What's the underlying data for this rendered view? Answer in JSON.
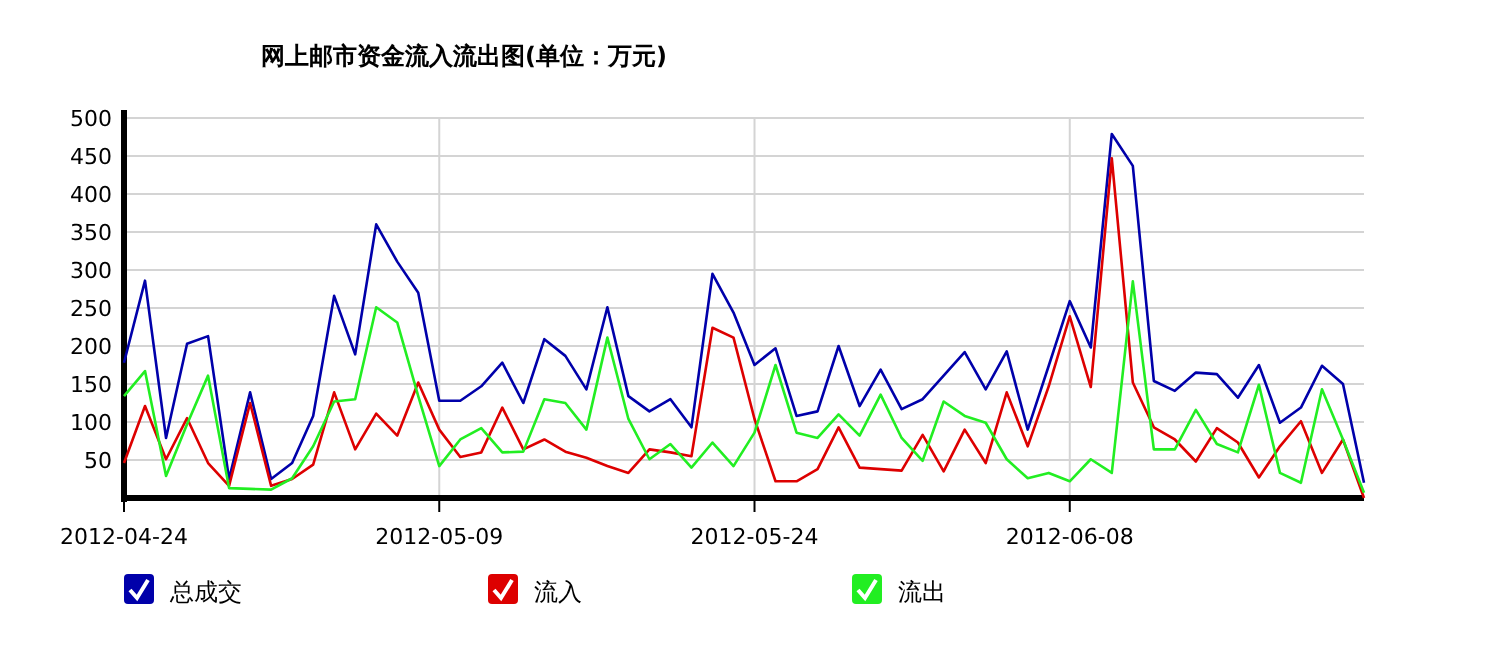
{
  "chart_data": {
    "type": "line",
    "title": "网上邮市资金流入流出图(单位：万元)",
    "x": [
      "2012-04-24",
      "2012-04-25",
      "2012-04-26",
      "2012-04-27",
      "2012-04-28",
      "2012-04-29",
      "2012-04-30",
      "2012-05-01",
      "2012-05-02",
      "2012-05-03",
      "2012-05-04",
      "2012-05-05",
      "2012-05-06",
      "2012-05-07",
      "2012-05-08",
      "2012-05-09",
      "2012-05-10",
      "2012-05-11",
      "2012-05-12",
      "2012-05-13",
      "2012-05-14",
      "2012-05-15",
      "2012-05-16",
      "2012-05-17",
      "2012-05-18",
      "2012-05-19",
      "2012-05-20",
      "2012-05-21",
      "2012-05-22",
      "2012-05-23",
      "2012-05-24",
      "2012-05-25",
      "2012-05-26",
      "2012-05-27",
      "2012-05-28",
      "2012-05-29",
      "2012-05-30",
      "2012-05-31",
      "2012-06-01",
      "2012-06-02",
      "2012-06-03",
      "2012-06-04",
      "2012-06-05",
      "2012-06-06",
      "2012-06-07",
      "2012-06-08",
      "2012-06-09",
      "2012-06-10",
      "2012-06-11",
      "2012-06-12",
      "2012-06-13",
      "2012-06-14",
      "2012-06-15",
      "2012-06-16",
      "2012-06-17",
      "2012-06-18",
      "2012-06-19",
      "2012-06-20",
      "2012-06-21",
      "2012-06-22"
    ],
    "series": [
      {
        "name": "总成交",
        "color": "#0000aa",
        "values": [
          178,
          286,
          79,
          203,
          213,
          25,
          139,
          25,
          46,
          108,
          266,
          189,
          360,
          311,
          270,
          128,
          128,
          147,
          178,
          125,
          209,
          187,
          143,
          251,
          134,
          114,
          130,
          93,
          295,
          244,
          175,
          197,
          108,
          114,
          200,
          121,
          169,
          117,
          130,
          161,
          192,
          143,
          193,
          90,
          174,
          259,
          198,
          479,
          437,
          154,
          141,
          165,
          163,
          132,
          175,
          99,
          119,
          174,
          150,
          20
        ]
      },
      {
        "name": "流入",
        "color": "#dd0000",
        "values": [
          46,
          121,
          51,
          105,
          46,
          16,
          125,
          16,
          25,
          44,
          139,
          64,
          111,
          82,
          152,
          90,
          54,
          60,
          119,
          64,
          77,
          61,
          53,
          42,
          33,
          64,
          60,
          55,
          224,
          211,
          104,
          22,
          22,
          38,
          93,
          40,
          38,
          36,
          83,
          35,
          90,
          46,
          139,
          68,
          147,
          239,
          146,
          447,
          152,
          93,
          77,
          48,
          92,
          73,
          27,
          68,
          101,
          33,
          77,
          0
        ]
      },
      {
        "name": "流出",
        "color": "#22ee22",
        "values": [
          134,
          167,
          29,
          97,
          161,
          13,
          12,
          11,
          26,
          68,
          127,
          130,
          251,
          231,
          134,
          42,
          77,
          92,
          60,
          61,
          130,
          125,
          90,
          211,
          104,
          51,
          71,
          40,
          73,
          42,
          86,
          175,
          86,
          79,
          110,
          82,
          136,
          79,
          49,
          127,
          108,
          99,
          51,
          26,
          33,
          22,
          51,
          33,
          285,
          64,
          64,
          116,
          71,
          60,
          149,
          33,
          20,
          143,
          77,
          7
        ]
      }
    ],
    "xlim": [
      "2012-04-24",
      "2012-06-22"
    ],
    "xticks": [
      "2012-04-24",
      "2012-05-09",
      "2012-05-24",
      "2012-06-08"
    ],
    "ylim": [
      0,
      500
    ],
    "yticks": [
      50,
      100,
      150,
      200,
      250,
      300,
      350,
      400,
      450,
      500
    ],
    "grid": true,
    "legend": "bottom"
  }
}
